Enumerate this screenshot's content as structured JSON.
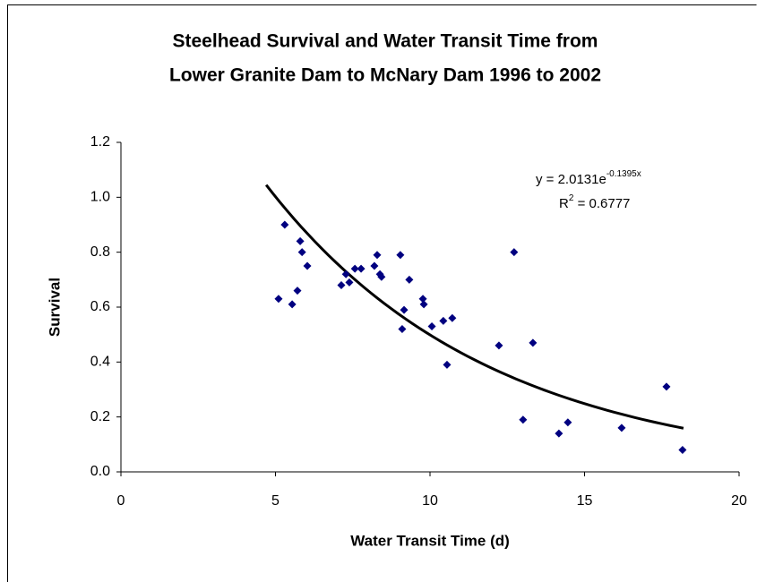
{
  "chart_data": {
    "type": "scatter",
    "title": [
      "Steelhead Survival and Water Transit Time  from",
      "Lower Granite Dam to McNary Dam 1996 to 2002"
    ],
    "x_label": "Water Transit Time (d)",
    "y_label": "Survival",
    "xlim": [
      0,
      20
    ],
    "xticks": [
      0,
      5,
      10,
      15,
      20
    ],
    "ylim": [
      0,
      1.2
    ],
    "yticks": [
      {
        "value": 0,
        "label": "0.0"
      },
      {
        "value": 0.2,
        "label": "0.2"
      },
      {
        "value": 0.4,
        "label": "0.4"
      },
      {
        "value": 0.6,
        "label": "0.6"
      },
      {
        "value": 0.8,
        "label": "0.8"
      },
      {
        "value": 1,
        "label": "1.0"
      },
      {
        "value": 1.2,
        "label": "1.2"
      }
    ],
    "grid": false,
    "color": "#000080",
    "x": [
      5.1,
      5.3,
      5.54,
      5.71,
      5.8,
      5.86,
      6.03,
      7.13,
      7.28,
      7.39,
      7.57,
      7.77,
      8.2,
      8.29,
      8.38,
      8.43,
      9.04,
      9.1,
      9.16,
      9.33,
      9.77,
      9.8,
      10.06,
      10.43,
      10.55,
      10.72,
      12.23,
      12.72,
      13.01,
      13.33,
      14.17,
      14.46,
      16.2,
      17.65,
      18.17
    ],
    "values": [
      0.63,
      0.9,
      0.61,
      0.66,
      0.84,
      0.8,
      0.75,
      0.68,
      0.72,
      0.69,
      0.74,
      0.74,
      0.75,
      0.79,
      0.72,
      0.71,
      0.79,
      0.52,
      0.59,
      0.7,
      0.63,
      0.61,
      0.53,
      0.55,
      0.39,
      0.56,
      0.46,
      0.8,
      0.19,
      0.47,
      0.14,
      0.18,
      0.16,
      0.31,
      0.08
    ],
    "trendline": {
      "a": 2.0131,
      "b": -0.1395,
      "x_start": 4.7,
      "x_end": 18.2,
      "color": "#000000",
      "equation": "y = 2.0131e",
      "equation_exponent": "-0.1395x",
      "r2": [
        "R",
        "2",
        " = 0.6777"
      ]
    }
  }
}
